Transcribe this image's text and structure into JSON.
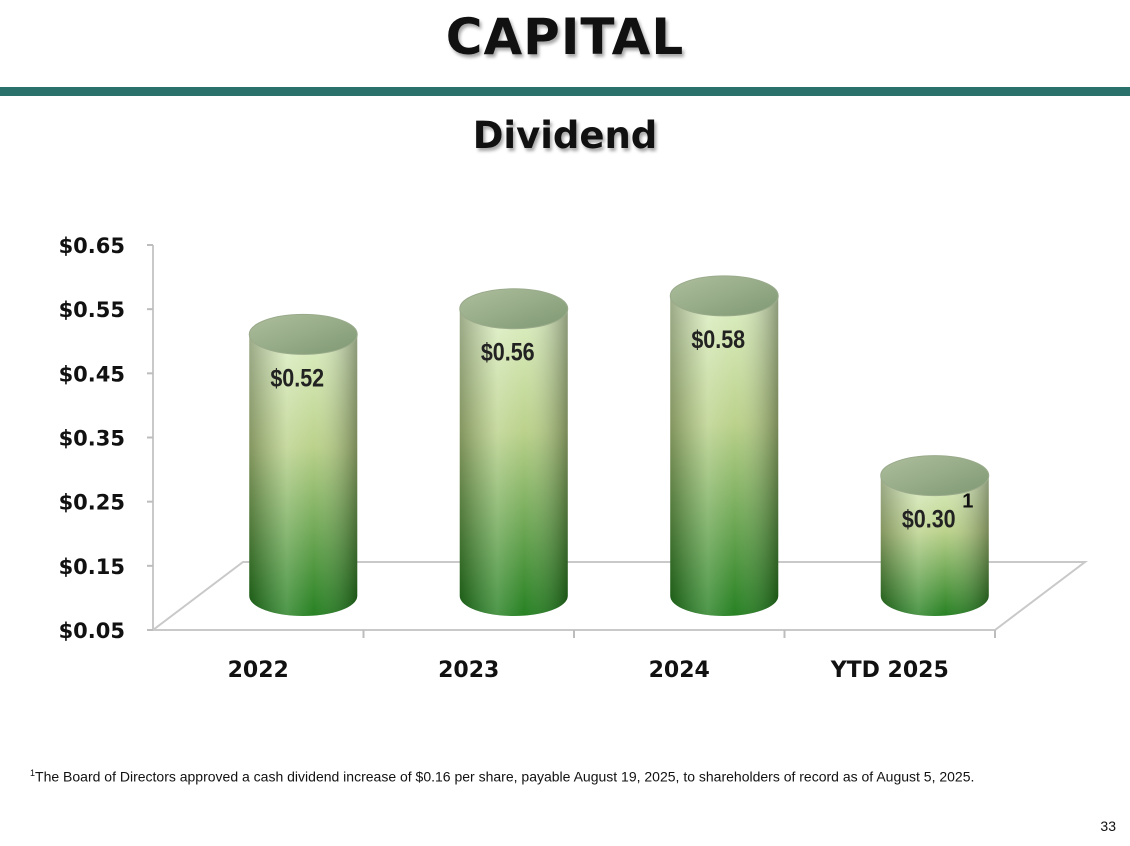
{
  "slide": {
    "title": "CAPITAL",
    "subtitle": "Dividend",
    "page_number": "33"
  },
  "footnote": {
    "marker": "1",
    "text": "The Board of Directors approved a cash dividend increase of $0.16 per share, payable August 19, 2025, to shareholders of record as of August 5, 2025."
  },
  "colors": {
    "accent_rule": "#2a706b",
    "bar_light": "#d6ecb4",
    "bar_dark": "#1f7a1a"
  },
  "chart_data": {
    "type": "bar",
    "title": "Dividend",
    "xlabel": "",
    "ylabel": "",
    "categories": [
      "2022",
      "2023",
      "2024",
      "YTD 2025"
    ],
    "values": [
      0.52,
      0.56,
      0.58,
      0.3
    ],
    "value_labels": [
      "$0.52",
      "$0.56",
      "$0.58",
      "$0.30"
    ],
    "value_label_superscripts": [
      "",
      "",
      "",
      "1"
    ],
    "ylim": [
      0.05,
      0.65
    ],
    "yticks": [
      0.05,
      0.15,
      0.25,
      0.35,
      0.45,
      0.55,
      0.65
    ],
    "ytick_labels": [
      "$0.05",
      "$0.15",
      "$0.25",
      "$0.35",
      "$0.45",
      "$0.55",
      "$0.65"
    ],
    "grid": false,
    "legend": "none",
    "style": "3d-cylinder"
  }
}
